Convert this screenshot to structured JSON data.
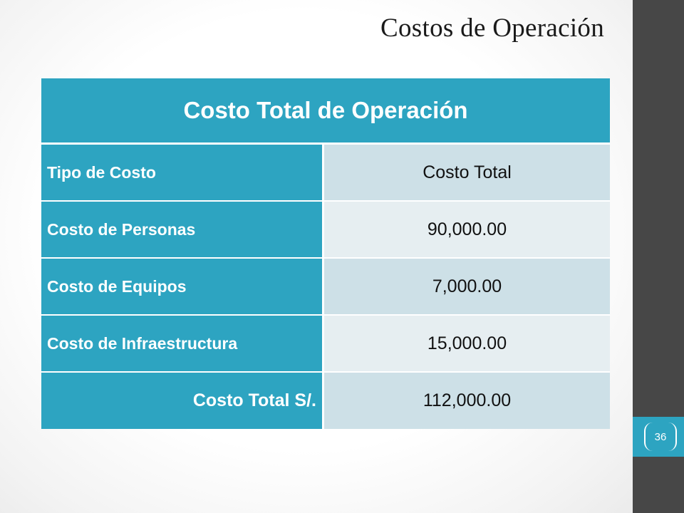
{
  "slide": {
    "title": "Costos de Operación",
    "page_number": "36"
  },
  "table": {
    "header": "Costo Total de Operación",
    "column_headers": [
      "Tipo de Costo",
      "Costo Total"
    ],
    "rows": [
      {
        "label": "Costo de Personas",
        "value": "90,000.00"
      },
      {
        "label": "Costo de Equipos",
        "value": "7,000.00"
      },
      {
        "label": "Costo de Infraestructura",
        "value": "15,000.00"
      }
    ],
    "total": {
      "label": "Costo Total S/.",
      "value": "112,000.00"
    }
  },
  "colors": {
    "accent": "#2da4c1",
    "sidebar": "#474747",
    "band_dark": "#cde0e7",
    "band_light": "#e6eef1"
  }
}
